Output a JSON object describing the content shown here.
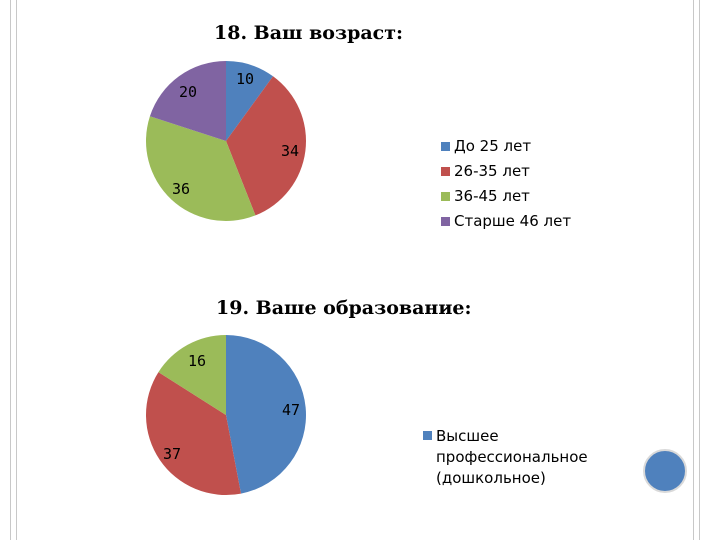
{
  "chart_data": [
    {
      "type": "pie",
      "title": "18. Ваш возраст:",
      "slices": [
        {
          "label": "До 25 лет",
          "value": 10,
          "color": "#4f81bd"
        },
        {
          "label": "26-35 лет",
          "value": 34,
          "color": "#c0504d"
        },
        {
          "label": "36-45 лет",
          "value": 36,
          "color": "#9bbb59"
        },
        {
          "label": "Старше 46 лет",
          "value": 20,
          "color": "#8064a2"
        }
      ],
      "legend_position": "right"
    },
    {
      "type": "pie",
      "title": "19. Ваше образование:",
      "slices": [
        {
          "label": "Высшее профессиональное (дошкольное)",
          "value": 47,
          "color": "#4f81bd"
        },
        {
          "label": "",
          "value": 37,
          "color": "#c0504d"
        },
        {
          "label": "",
          "value": 16,
          "color": "#9bbb59"
        }
      ],
      "legend_position": "right"
    }
  ],
  "decorations": {
    "circle_color": "#4f81bd"
  }
}
